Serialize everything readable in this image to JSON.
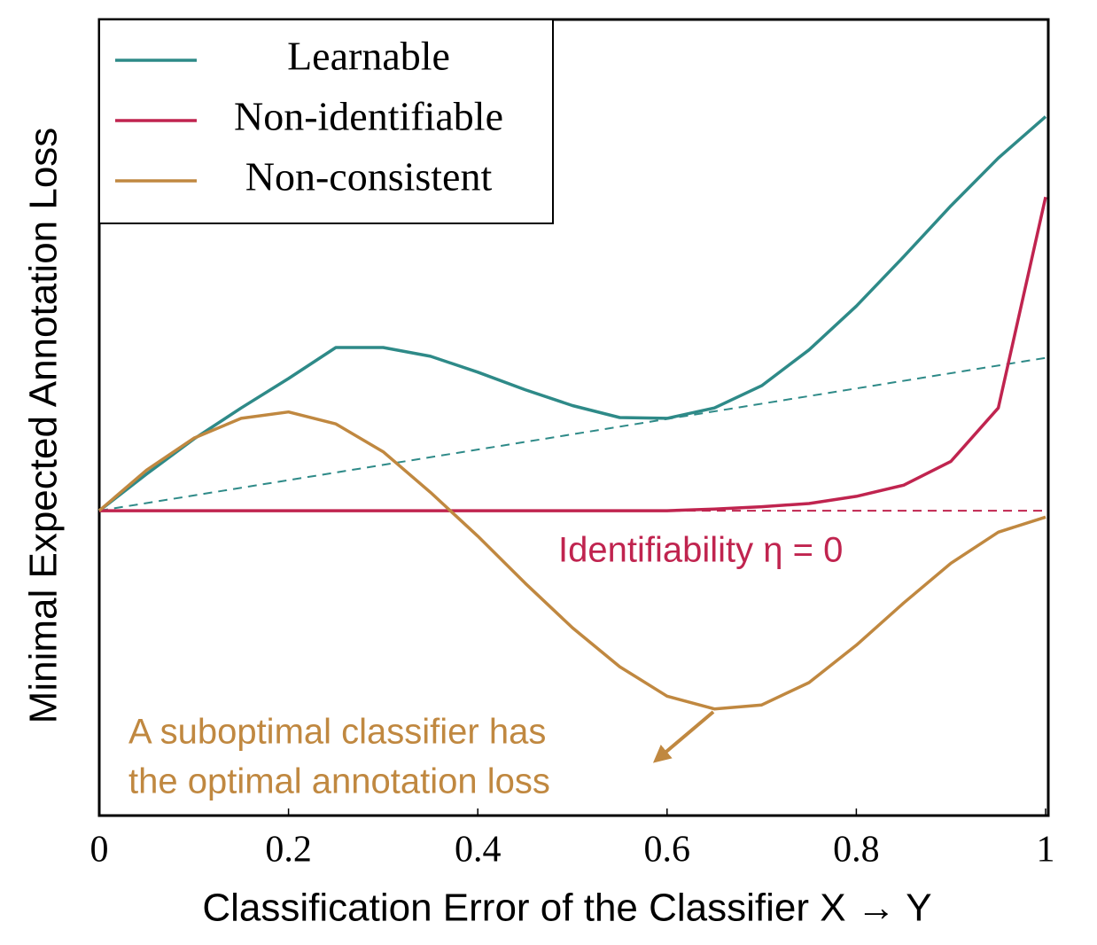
{
  "chart_data": {
    "type": "line",
    "x_label": "Classification Error of the Classifier X → Y",
    "y_label": "Minimal Expected Annotation Loss",
    "x": [
      0,
      0.05,
      0.1,
      0.15,
      0.2,
      0.25,
      0.3,
      0.35,
      0.4,
      0.45,
      0.5,
      0.55,
      0.6,
      0.65,
      0.7,
      0.75,
      0.8,
      0.85,
      0.9,
      0.95,
      1
    ],
    "series": [
      {
        "name": "Learnable",
        "color": "#2e8a88",
        "values": [
          0.383,
          0.429,
          0.473,
          0.512,
          0.549,
          0.588,
          0.588,
          0.577,
          0.557,
          0.535,
          0.515,
          0.5,
          0.499,
          0.512,
          0.54,
          0.585,
          0.64,
          0.702,
          0.766,
          0.826,
          0.878
        ]
      },
      {
        "name": "Non-identifiable",
        "color": "#c0244f",
        "values": [
          0.383,
          0.383,
          0.383,
          0.383,
          0.383,
          0.383,
          0.383,
          0.383,
          0.383,
          0.383,
          0.383,
          0.383,
          0.383,
          0.385,
          0.388,
          0.392,
          0.401,
          0.415,
          0.445,
          0.512,
          0.777
        ]
      },
      {
        "name": "Non-consistent",
        "color": "#c08840",
        "values": [
          0.383,
          0.434,
          0.474,
          0.499,
          0.507,
          0.492,
          0.457,
          0.406,
          0.351,
          0.292,
          0.236,
          0.187,
          0.15,
          0.134,
          0.139,
          0.167,
          0.214,
          0.267,
          0.317,
          0.356,
          0.375
        ]
      }
    ],
    "reference_lines": [
      {
        "color": "#2e8a88",
        "x": [
          0,
          1
        ],
        "values": [
          0.383,
          0.575
        ]
      },
      {
        "color": "#c0244f",
        "x": [
          0,
          1
        ],
        "values": [
          0.383,
          0.383
        ]
      }
    ],
    "annotations": [
      {
        "text": "Identifiability η = 0",
        "color": "#c0244f"
      },
      {
        "text": "A suboptimal classifier has",
        "color": "#c08840"
      },
      {
        "text": "the optimal annotation loss",
        "color": "#c08840"
      }
    ],
    "xlim": [
      0,
      1
    ],
    "ylim": [
      0,
      1
    ],
    "xticks": [
      0,
      0.2,
      0.4,
      0.6,
      0.8,
      1
    ],
    "legend": "top-left"
  }
}
